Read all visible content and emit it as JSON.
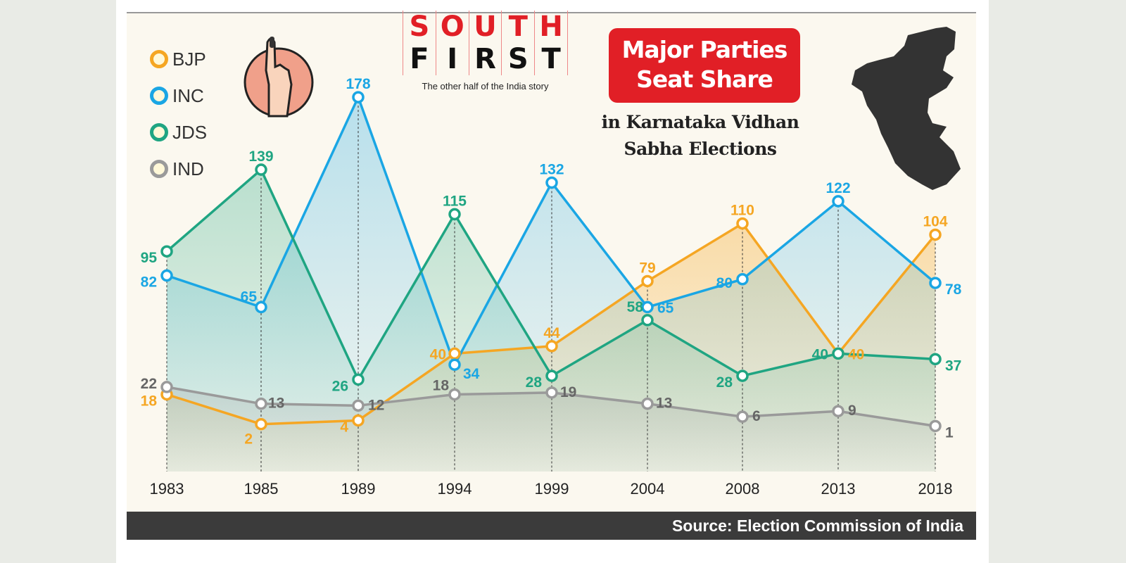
{
  "header": {
    "logo_line1": [
      "S",
      "O",
      "U",
      "T",
      "H"
    ],
    "logo_line2": [
      "F",
      "I",
      "R",
      "S",
      "T"
    ],
    "tagline": "The other half of the India story",
    "title_line1": "Major Parties",
    "title_line2": "Seat Share",
    "subtitle_line1": "in Karnataka Vidhan",
    "subtitle_line2": "Sabha Elections"
  },
  "source": "Source: Election Commission of India",
  "colors": {
    "BJP": "#f5a623",
    "INC": "#1aa6e4",
    "JDS": "#1fa582",
    "IND": "#9a9a9a",
    "title_bg": "#e11f26",
    "map": "#333333"
  },
  "icons": [
    "voting-finger-icon",
    "karnataka-map-icon"
  ],
  "chart_data": {
    "type": "line",
    "title": "Major Parties Seat Share in Karnataka Vidhan Sabha Elections",
    "categories": [
      "1983",
      "1985",
      "1989",
      "1994",
      "1999",
      "2004",
      "2008",
      "2013",
      "2018"
    ],
    "legend_position": "top-left",
    "grid": false,
    "ylim": [
      0,
      180
    ],
    "series": [
      {
        "name": "BJP",
        "color": "#f5a623",
        "values": [
          18,
          2,
          4,
          40,
          44,
          79,
          110,
          40,
          104
        ]
      },
      {
        "name": "INC",
        "color": "#1aa6e4",
        "values": [
          82,
          65,
          178,
          34,
          132,
          65,
          80,
          122,
          78
        ]
      },
      {
        "name": "JDS",
        "color": "#1fa582",
        "values": [
          95,
          139,
          26,
          115,
          28,
          58,
          28,
          40,
          37
        ]
      },
      {
        "name": "IND",
        "color": "#9a9a9a",
        "values": [
          22,
          13,
          12,
          18,
          19,
          13,
          6,
          9,
          1
        ]
      }
    ]
  }
}
